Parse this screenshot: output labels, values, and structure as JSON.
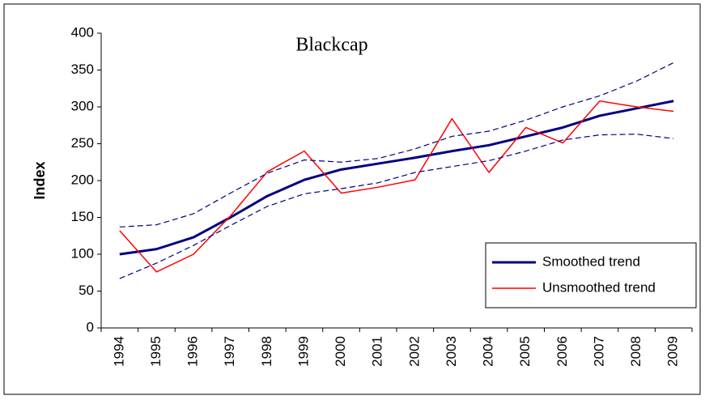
{
  "chart_data": {
    "type": "line",
    "title": "Blackcap",
    "y_label": "Index",
    "categories": [
      "1994",
      "1995",
      "1996",
      "1997",
      "1998",
      "1999",
      "2000",
      "2001",
      "2002",
      "2003",
      "2004",
      "2005",
      "2006",
      "2007",
      "2008",
      "2009"
    ],
    "series": [
      {
        "name": "Smoothed trend",
        "color": "#000080",
        "width": 3,
        "values": [
          100,
          107,
          123,
          150,
          179,
          201,
          215,
          223,
          231,
          240,
          248,
          260,
          272,
          288,
          298,
          308
        ]
      },
      {
        "name": "Unsmoothed trend",
        "color": "#ff0000",
        "width": 1.5,
        "values": [
          132,
          76,
          100,
          152,
          212,
          240,
          183,
          191,
          201,
          284,
          211,
          272,
          251,
          308,
          300,
          294
        ]
      },
      {
        "color": "#000080",
        "width": 1.2,
        "dashed": true,
        "values": [
          137,
          140,
          155,
          183,
          210,
          228,
          225,
          230,
          243,
          260,
          267,
          282,
          300,
          315,
          335,
          360
        ]
      },
      {
        "color": "#000080",
        "width": 1.2,
        "dashed": true,
        "values": [
          67,
          88,
          112,
          139,
          165,
          182,
          189,
          197,
          211,
          219,
          227,
          240,
          255,
          262,
          263,
          257
        ]
      }
    ],
    "ylim": [
      0,
      400
    ],
    "yticks": [
      0,
      50,
      100,
      150,
      200,
      250,
      300,
      350,
      400
    ],
    "grid": false,
    "legend": "lower right"
  }
}
